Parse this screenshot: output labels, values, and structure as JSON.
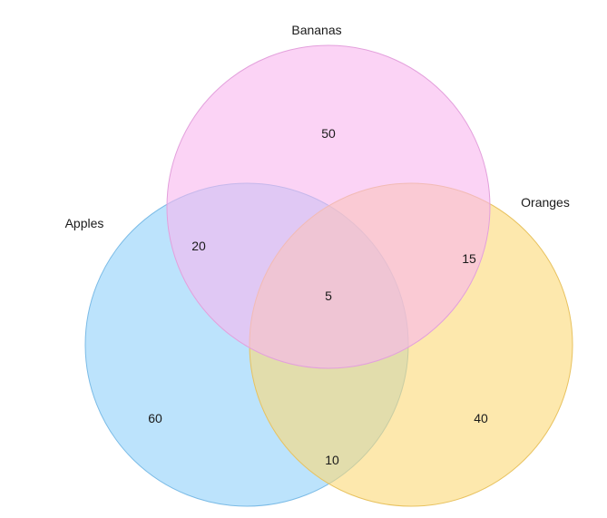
{
  "sets": {
    "apples": {
      "label": "Apples",
      "fill": "#90d0fa",
      "stroke": "#7bbbe6"
    },
    "bananas": {
      "label": "Bananas",
      "fill": "#f9b6ef",
      "stroke": "#e3a0dc"
    },
    "oranges": {
      "label": "Oranges",
      "fill": "#fcd876",
      "stroke": "#e8c25f"
    }
  },
  "regions": {
    "apples_only": "60",
    "bananas_only": "50",
    "oranges_only": "40",
    "apples_bananas": "20",
    "bananas_oranges": "15",
    "apples_oranges": "10",
    "all_three": "5"
  }
}
